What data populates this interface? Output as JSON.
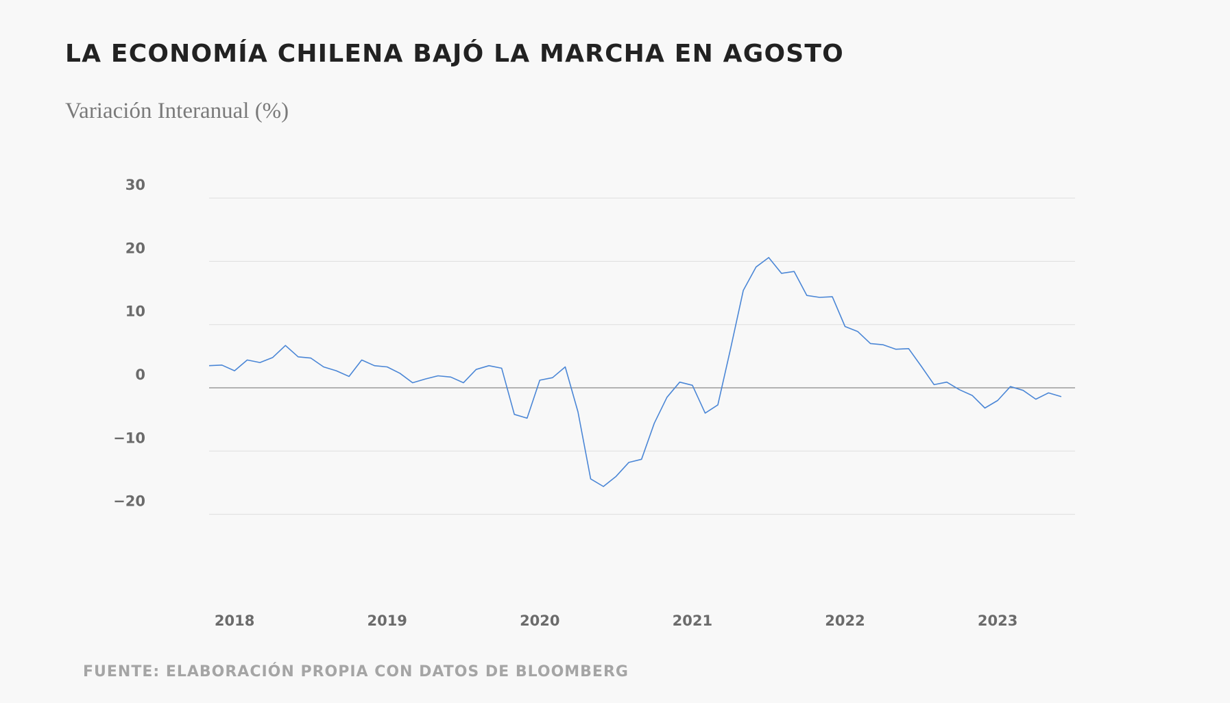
{
  "header": {
    "title": "LA ECONOMÍA CHILENA BAJÓ LA MARCHA EN AGOSTO",
    "subtitle": "Variación Interanual (%)"
  },
  "footer": {
    "source": "FUENTE: ELABORACIÓN PROPIA CON DATOS DE BLOOMBERG"
  },
  "colors": {
    "line": "#4a86d6",
    "grid": "#dddddd",
    "zero_line": "#888888"
  },
  "chart_data": {
    "type": "line",
    "title": "LA ECONOMÍA CHILENA BAJÓ LA MARCHA EN AGOSTO",
    "ylabel": "Variación Interanual (%)",
    "xlabel": "",
    "ylim": [
      -30,
      30
    ],
    "xlim": [
      "2018-01",
      "2023-08"
    ],
    "grid": true,
    "legend": "none",
    "y_ticks": [
      30,
      20,
      10,
      0,
      -10,
      -20
    ],
    "x_tick_labels": [
      {
        "label": "2018",
        "month": "2018-03"
      },
      {
        "label": "2019",
        "month": "2019-03"
      },
      {
        "label": "2020",
        "month": "2020-03"
      },
      {
        "label": "2021",
        "month": "2021-03"
      },
      {
        "label": "2022",
        "month": "2022-03"
      },
      {
        "label": "2023",
        "month": "2023-03"
      }
    ],
    "start_month": "2018-01",
    "x": [
      "2018-01",
      "2018-02",
      "2018-03",
      "2018-04",
      "2018-05",
      "2018-06",
      "2018-07",
      "2018-08",
      "2018-09",
      "2018-10",
      "2018-11",
      "2018-12",
      "2019-01",
      "2019-02",
      "2019-03",
      "2019-04",
      "2019-05",
      "2019-06",
      "2019-07",
      "2019-08",
      "2019-09",
      "2019-10",
      "2019-11",
      "2019-12",
      "2020-01",
      "2020-02",
      "2020-03",
      "2020-04",
      "2020-05",
      "2020-06",
      "2020-07",
      "2020-08",
      "2020-09",
      "2020-10",
      "2020-11",
      "2020-12",
      "2021-01",
      "2021-02",
      "2021-03",
      "2021-04",
      "2021-05",
      "2021-06",
      "2021-07",
      "2021-08",
      "2021-09",
      "2021-10",
      "2021-11",
      "2021-12",
      "2022-01",
      "2022-02",
      "2022-03",
      "2022-04",
      "2022-05",
      "2022-06",
      "2022-07",
      "2022-08",
      "2022-09",
      "2022-10",
      "2022-11",
      "2022-12",
      "2023-01",
      "2023-02",
      "2023-03",
      "2023-04",
      "2023-05",
      "2023-06",
      "2023-07",
      "2023-08"
    ],
    "values": [
      3.5,
      3.6,
      2.7,
      4.4,
      4.0,
      4.8,
      6.7,
      4.9,
      4.7,
      3.3,
      2.7,
      1.8,
      4.4,
      3.5,
      3.3,
      2.3,
      0.8,
      1.4,
      1.9,
      1.7,
      0.8,
      2.9,
      3.5,
      3.1,
      -4.2,
      -4.8,
      1.2,
      1.6,
      3.3,
      -3.8,
      -14.4,
      -15.6,
      -14.0,
      -11.8,
      -11.3,
      -5.6,
      -1.5,
      0.9,
      0.4,
      -4.0,
      -2.7,
      6.2,
      15.4,
      19.1,
      20.6,
      18.1,
      18.4,
      14.6,
      14.3,
      14.4,
      9.7,
      8.9,
      7.0,
      6.8,
      6.1,
      6.2,
      3.4,
      0.5,
      0.9,
      -0.3,
      -1.2,
      -3.2,
      -2.0,
      0.2,
      -0.4,
      -1.8,
      -0.8,
      -1.4
    ]
  }
}
